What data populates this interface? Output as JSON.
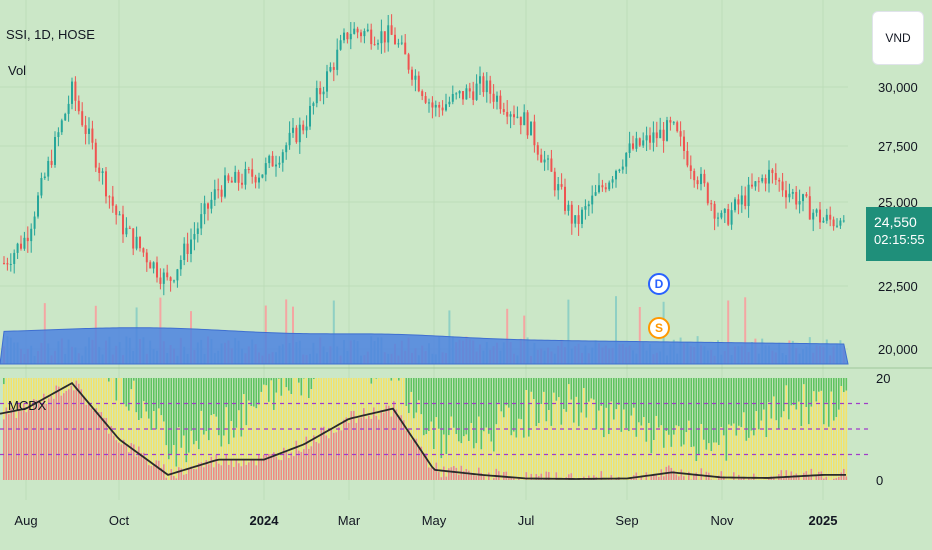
{
  "header": {
    "symbol": "SSI, 1D, HOSE",
    "volume_label": "Vol"
  },
  "indicator": {
    "label": "MCDX"
  },
  "currency_button": {
    "label": "VND"
  },
  "price_badge": {
    "price": "24,550",
    "countdown": "02:15:55"
  },
  "markers": [
    {
      "label": "D",
      "color": "#2962ff"
    },
    {
      "label": "S",
      "color": "#ff9800"
    }
  ],
  "colors": {
    "background": "#cbe7c7",
    "up_candle": "#26a69a",
    "down_candle": "#ef5350",
    "volume_ma": "#4c82e0",
    "mcdx_green": "#5fc35f",
    "mcdx_yellow": "#f3e36a",
    "mcdx_red": "#f08a80",
    "mcdx_line": "#2b2b2b",
    "dashed_line": "#a03cc8"
  },
  "chart_data": {
    "type": "line",
    "title": "SSI, 1D, HOSE",
    "x_ticks": [
      "Aug",
      "Oct",
      "2024",
      "Mar",
      "May",
      "Jul",
      "Sep",
      "Nov",
      "2025"
    ],
    "y_ticks": [
      "30,000",
      "27,500",
      "25,000",
      "22,500",
      "20,000"
    ],
    "ylim": [
      19700,
      31800
    ],
    "indicator_y_ticks": [
      "20",
      "0"
    ],
    "indicator_ylim": [
      0,
      20
    ],
    "indicator_dashed_levels": [
      5,
      10,
      15
    ],
    "price_close_path": {
      "x": [
        "Jul 2023",
        "Aug",
        "Sep",
        "Oct",
        "Nov",
        "Dec",
        "Jan 2024",
        "Feb",
        "Mar",
        "Apr",
        "May",
        "Jun",
        "Jul",
        "Aug",
        "Sep",
        "Oct",
        "Nov",
        "Dec",
        "Jan 2025"
      ],
      "y": [
        23000,
        24000,
        28800,
        24500,
        22500,
        25600,
        26200,
        27700,
        30800,
        30600,
        28200,
        29000,
        27800,
        24400,
        26800,
        27600,
        24500,
        26100,
        24550
      ]
    },
    "mcdx_banker_path": {
      "x": [
        "Jul 2023",
        "Aug",
        "Sep",
        "Oct",
        "Nov",
        "Dec",
        "Jan 2024",
        "Feb",
        "Mar",
        "Apr",
        "May",
        "Jun",
        "Jul",
        "Aug",
        "Sep",
        "Oct",
        "Nov",
        "Dec",
        "Jan 2025"
      ],
      "y": [
        13,
        14,
        19,
        8,
        1,
        4,
        4,
        7,
        12,
        14,
        2,
        1,
        0.3,
        0.2,
        0.3,
        1.5,
        0.5,
        0.4,
        1
      ]
    },
    "last_price": 24550
  }
}
